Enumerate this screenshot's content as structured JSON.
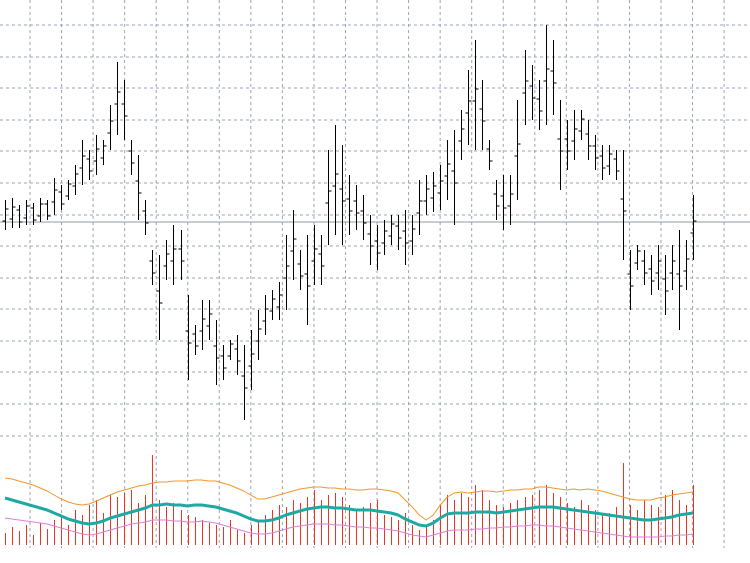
{
  "chart_data": [
    {
      "type": "ohlc",
      "color": "#000000",
      "grid": true,
      "grid_color": "#9aa5b5",
      "ylim": [
        -9,
        436
      ],
      "yticks": [
        0,
        32,
        64,
        95,
        127,
        158,
        190,
        221,
        253,
        285,
        316,
        348,
        379,
        411
      ],
      "hline": 214,
      "hline_color": "#8a9aa8",
      "high": [
        236,
        238,
        231,
        236,
        233,
        238,
        236,
        258,
        251,
        256,
        271,
        296,
        286,
        301,
        296,
        331,
        374,
        356,
        296,
        281,
        236,
        186,
        181,
        196,
        211,
        206,
        141,
        111,
        136,
        136,
        116,
        91,
        96,
        101,
        91,
        106,
        126,
        141,
        146,
        154,
        201,
        226,
        186,
        201,
        211,
        201,
        286,
        311,
        291,
        261,
        251,
        241,
        221,
        211,
        216,
        221,
        221,
        226,
        221,
        256,
        261,
        264,
        271,
        296,
        306,
        326,
        366,
        396,
        356,
        296,
        256,
        261,
        261,
        336,
        386,
        371,
        356,
        411,
        396,
        336,
        316,
        326,
        326,
        316,
        301,
        291,
        291,
        286,
        286,
        186,
        191,
        186,
        181,
        191,
        181,
        191,
        206,
        196,
        241
      ],
      "low": [
        206,
        208,
        208,
        211,
        211,
        214,
        216,
        221,
        226,
        236,
        241,
        251,
        256,
        261,
        271,
        286,
        301,
        296,
        261,
        216,
        201,
        151,
        96,
        156,
        151,
        156,
        56,
        81,
        86,
        96,
        51,
        56,
        76,
        61,
        16,
        46,
        76,
        101,
        116,
        116,
        126,
        156,
        146,
        111,
        151,
        151,
        191,
        201,
        191,
        201,
        206,
        196,
        171,
        166,
        181,
        191,
        186,
        171,
        181,
        201,
        221,
        224,
        226,
        236,
        211,
        276,
        291,
        286,
        286,
        266,
        216,
        206,
        211,
        236,
        311,
        316,
        306,
        311,
        321,
        246,
        266,
        276,
        296,
        276,
        266,
        256,
        261,
        256,
        176,
        126,
        166,
        151,
        141,
        146,
        121,
        146,
        106,
        146,
        176
      ],
      "open": [
        215,
        217,
        226,
        218,
        228,
        220,
        232,
        234,
        244,
        240,
        250,
        268,
        277,
        275,
        278,
        303,
        332,
        332,
        285,
        255,
        225,
        175,
        145,
        170,
        175,
        187,
        105,
        102,
        105,
        110,
        90,
        80,
        80,
        87,
        60,
        70,
        95,
        115,
        125,
        129,
        158,
        185,
        172,
        162,
        175,
        182,
        233,
        250,
        247,
        237,
        235,
        225,
        202,
        195,
        193,
        200,
        210,
        205,
        195,
        223,
        235,
        238,
        243,
        260,
        265,
        295,
        323,
        335,
        327,
        287,
        242,
        240,
        230,
        280,
        343,
        350,
        337,
        355,
        365,
        297,
        297,
        295,
        305,
        302,
        290,
        280,
        270,
        277,
        237,
        162,
        173,
        175,
        167,
        163,
        157,
        163,
        162,
        165,
        203
      ],
      "close": [
        227,
        229,
        214,
        230,
        216,
        232,
        220,
        246,
        232,
        252,
        262,
        280,
        265,
        287,
        290,
        315,
        344,
        320,
        273,
        243,
        213,
        163,
        133,
        182,
        187,
        175,
        93,
        90,
        117,
        122,
        78,
        68,
        92,
        75,
        48,
        82,
        107,
        127,
        137,
        141,
        170,
        197,
        160,
        150,
        187,
        170,
        245,
        262,
        235,
        225,
        223,
        213,
        190,
        183,
        205,
        212,
        198,
        193,
        207,
        235,
        247,
        250,
        255,
        272,
        253,
        307,
        335,
        347,
        315,
        275,
        230,
        228,
        242,
        292,
        355,
        338,
        325,
        367,
        353,
        285,
        285,
        307,
        317,
        290,
        278,
        268,
        282,
        265,
        225,
        150,
        185,
        163,
        155,
        175,
        145,
        175,
        150,
        177,
        215
      ]
    },
    {
      "type": "volume",
      "color": "#ee3322",
      "ylim": [
        0,
        100
      ],
      "values": [
        12,
        18,
        14,
        20,
        10,
        22,
        16,
        25,
        28,
        20,
        35,
        30,
        40,
        45,
        32,
        50,
        48,
        52,
        55,
        42,
        50,
        90,
        45,
        38,
        42,
        35,
        30,
        28,
        25,
        22,
        20,
        18,
        25,
        15,
        12,
        20,
        25,
        30,
        35,
        40,
        38,
        45,
        42,
        48,
        55,
        45,
        50,
        52,
        48,
        40,
        35,
        38,
        42,
        45,
        30,
        28,
        25,
        32,
        20,
        15,
        18,
        25,
        40,
        50,
        45,
        52,
        48,
        60,
        55,
        45,
        40,
        38,
        42,
        45,
        48,
        50,
        55,
        60,
        52,
        48,
        42,
        38,
        45,
        40,
        35,
        30,
        32,
        38,
        82,
        40,
        35,
        45,
        40,
        38,
        50,
        55,
        45,
        40,
        60
      ],
      "lines": [
        {
          "color": "#f5952a",
          "width": 1,
          "values": [
            67,
            66,
            64,
            62,
            60,
            57,
            54,
            50,
            46,
            43,
            41,
            40,
            41,
            44,
            47,
            50,
            53,
            55,
            57,
            59,
            60,
            62,
            63,
            63,
            64,
            64,
            64,
            65,
            65,
            64,
            64,
            62,
            60,
            57,
            54,
            50,
            46,
            46,
            48,
            50,
            52,
            54,
            56,
            57,
            58,
            58,
            57,
            57,
            56,
            56,
            55,
            55,
            56,
            56,
            55,
            54,
            52,
            45,
            38,
            30,
            25,
            30,
            40,
            48,
            52,
            53,
            52,
            53,
            54,
            54,
            53,
            54,
            55,
            55,
            56,
            56,
            58,
            58,
            57,
            56,
            55,
            56,
            55,
            56,
            55,
            54,
            52,
            50,
            48,
            46,
            45,
            45,
            45,
            47,
            48,
            50,
            51,
            52,
            53
          ]
        },
        {
          "color": "#1fa9a3",
          "width": 3,
          "values": [
            47,
            45,
            43,
            41,
            39,
            37,
            35,
            32,
            29,
            26,
            24,
            22,
            21,
            22,
            24,
            27,
            29,
            31,
            33,
            35,
            37,
            40,
            40,
            41,
            40,
            40,
            39,
            40,
            40,
            39,
            38,
            36,
            34,
            32,
            29,
            26,
            24,
            24,
            25,
            27,
            30,
            32,
            34,
            36,
            37,
            38,
            38,
            37,
            37,
            36,
            35,
            35,
            35,
            34,
            33,
            32,
            30,
            26,
            23,
            20,
            19,
            22,
            27,
            31,
            32,
            32,
            32,
            33,
            33,
            33,
            32,
            33,
            34,
            35,
            36,
            37,
            38,
            38,
            38,
            37,
            36,
            35,
            34,
            33,
            32,
            31,
            30,
            29,
            28,
            27,
            26,
            25,
            25,
            26,
            27,
            28,
            30,
            31,
            32
          ]
        },
        {
          "color": "#e27ed6",
          "width": 1,
          "values": [
            27,
            26,
            25,
            24,
            23,
            22,
            21,
            19,
            17,
            15,
            13,
            11,
            10,
            11,
            13,
            15,
            17,
            19,
            21,
            22,
            23,
            25,
            25,
            25,
            24,
            24,
            23,
            23,
            24,
            23,
            22,
            20,
            18,
            16,
            14,
            12,
            11,
            11,
            12,
            14,
            16,
            18,
            19,
            20,
            21,
            21,
            21,
            20,
            20,
            19,
            18,
            18,
            17,
            17,
            16,
            15,
            14,
            12,
            10,
            9,
            8,
            10,
            12,
            14,
            15,
            15,
            15,
            16,
            16,
            17,
            17,
            18,
            18,
            19,
            19,
            20,
            20,
            19,
            19,
            18,
            17,
            16,
            15,
            14,
            13,
            12,
            11,
            10,
            9,
            8,
            8,
            8,
            8,
            8,
            9,
            9,
            10,
            10,
            11
          ]
        }
      ]
    }
  ]
}
